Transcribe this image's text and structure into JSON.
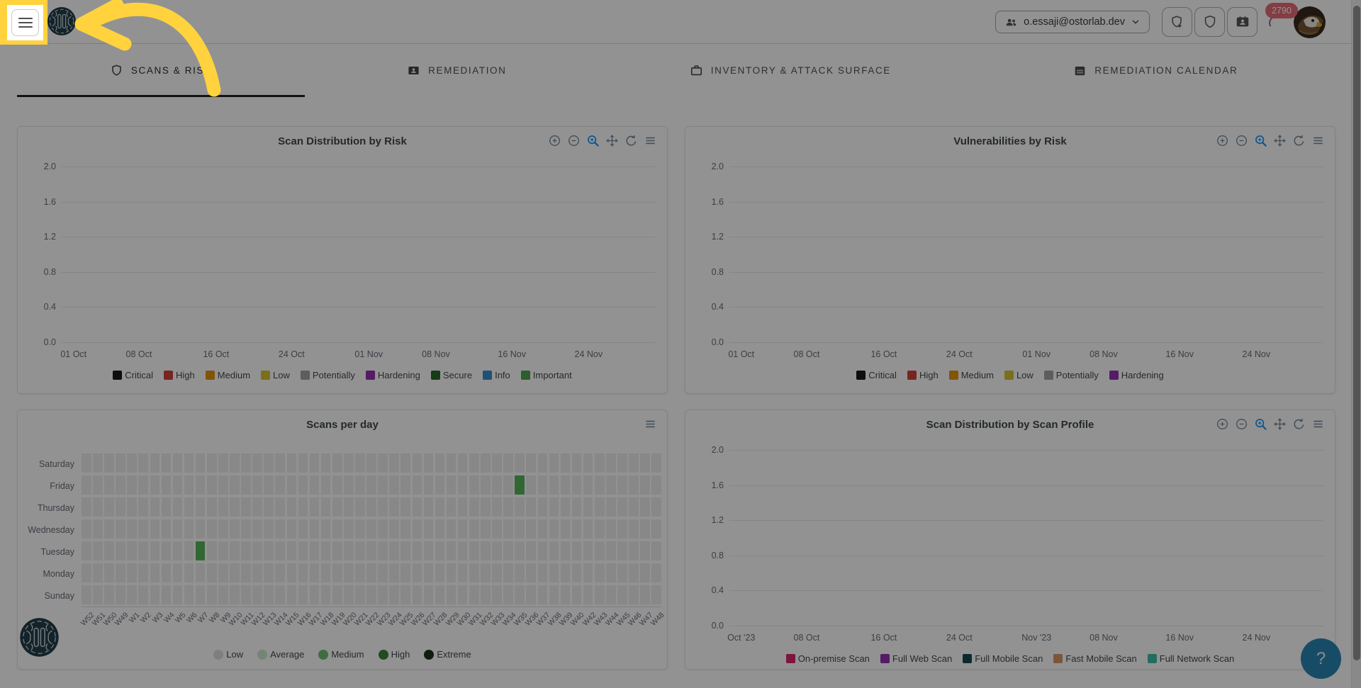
{
  "annotation": {
    "highlight_color": "#FFD23E",
    "target": "menu-button"
  },
  "header": {
    "account": {
      "email": "o.essaji@ostorlab.dev"
    },
    "badge_count": "2790",
    "actions": [
      {
        "name": "new-scan-button",
        "icon": "shield-plus-icon"
      },
      {
        "name": "security-button",
        "icon": "shield-icon"
      },
      {
        "name": "contacts-button",
        "icon": "contact-card-icon"
      },
      {
        "name": "usage-button",
        "icon": "arc-gauge-icon"
      }
    ]
  },
  "tabs": [
    {
      "label": "SCANS & RISK",
      "icon": "shield-icon",
      "active": true
    },
    {
      "label": "REMEDIATION",
      "icon": "contact-card-icon",
      "active": false
    },
    {
      "label": "INVENTORY & ATTACK SURFACE",
      "icon": "briefcase-icon",
      "active": false
    },
    {
      "label": "REMEDIATION CALENDAR",
      "icon": "calendar-icon",
      "active": false
    }
  ],
  "help_fab": {
    "label": "?"
  },
  "chart_data": [
    {
      "type": "line",
      "title": "Scan Distribution by Risk",
      "x_ticks": [
        "01 Oct",
        "08 Oct",
        "16 Oct",
        "24 Oct",
        "01 Nov",
        "08 Nov",
        "16 Nov",
        "24 Nov"
      ],
      "y_ticks": [
        "2.0",
        "1.6",
        "1.2",
        "0.8",
        "0.4",
        "0.0"
      ],
      "ylim": [
        0,
        2
      ],
      "grid": true,
      "legend_position": "bottom",
      "toolbar": [
        "zoom-in",
        "zoom-out",
        "selection-zoom",
        "pan",
        "reset",
        "menu"
      ],
      "active_tool": "selection-zoom",
      "series": [
        {
          "name": "Critical",
          "color": "#0b0b0b",
          "values": []
        },
        {
          "name": "High",
          "color": "#d0342c",
          "values": []
        },
        {
          "name": "Medium",
          "color": "#df8f00",
          "values": []
        },
        {
          "name": "Low",
          "color": "#d2bf23",
          "values": []
        },
        {
          "name": "Potentially",
          "color": "#9e9e9e",
          "values": []
        },
        {
          "name": "Hardening",
          "color": "#8e24aa",
          "values": []
        },
        {
          "name": "Secure",
          "color": "#1b5e20",
          "values": []
        },
        {
          "name": "Info",
          "color": "#2f86c9",
          "values": []
        },
        {
          "name": "Important",
          "color": "#43a047",
          "values": []
        }
      ]
    },
    {
      "type": "line",
      "title": "Vulnerabilities by Risk",
      "x_ticks": [
        "01 Oct",
        "08 Oct",
        "16 Oct",
        "24 Oct",
        "01 Nov",
        "08 Nov",
        "16 Nov",
        "24 Nov"
      ],
      "y_ticks": [
        "2.0",
        "1.6",
        "1.2",
        "0.8",
        "0.4",
        "0.0"
      ],
      "ylim": [
        0,
        2
      ],
      "grid": true,
      "legend_position": "bottom",
      "toolbar": [
        "zoom-in",
        "zoom-out",
        "selection-zoom",
        "pan",
        "reset",
        "menu"
      ],
      "active_tool": "selection-zoom",
      "series": [
        {
          "name": "Critical",
          "color": "#0b0b0b",
          "values": []
        },
        {
          "name": "High",
          "color": "#d0342c",
          "values": []
        },
        {
          "name": "Medium",
          "color": "#df8f00",
          "values": []
        },
        {
          "name": "Low",
          "color": "#d2bf23",
          "values": []
        },
        {
          "name": "Potentially",
          "color": "#9e9e9e",
          "values": []
        },
        {
          "name": "Hardening",
          "color": "#8e24aa",
          "values": []
        }
      ]
    },
    {
      "type": "heatmap",
      "title": "Scans per day",
      "toolbar": [
        "menu"
      ],
      "rows": [
        "Saturday",
        "Friday",
        "Thursday",
        "Wednesday",
        "Tuesday",
        "Monday",
        "Sunday"
      ],
      "columns": [
        "W52",
        "W51",
        "W50",
        "W49",
        "W1",
        "W2",
        "W3",
        "W4",
        "W5",
        "W6",
        "W7",
        "W8",
        "W9",
        "W10",
        "W11",
        "W12",
        "W13",
        "W14",
        "W15",
        "W16",
        "W17",
        "W18",
        "W19",
        "W20",
        "W21",
        "W22",
        "W23",
        "W24",
        "W25",
        "W26",
        "W27",
        "W28",
        "W29",
        "W30",
        "W31",
        "W32",
        "W33",
        "W34",
        "W35",
        "W36",
        "W37",
        "W38",
        "W39",
        "W40",
        "W42",
        "W43",
        "W44",
        "W45",
        "W46",
        "W47",
        "W48"
      ],
      "cells": [
        {
          "row": "Friday",
          "column": "W35",
          "level": "Medium"
        },
        {
          "row": "Tuesday",
          "column": "W7",
          "level": "Medium"
        }
      ],
      "cell_color_default": "#ececec",
      "cell_color_active": "#4caf50",
      "legend": [
        {
          "name": "Low",
          "color": "#dcdcdc"
        },
        {
          "name": "Average",
          "color": "#c8e6c9"
        },
        {
          "name": "Medium",
          "color": "#66bb6a"
        },
        {
          "name": "High",
          "color": "#2e7d32"
        },
        {
          "name": "Extreme",
          "color": "#13240f"
        }
      ]
    },
    {
      "type": "line",
      "title": "Scan Distribution by Scan Profile",
      "x_ticks": [
        "Oct '23",
        "08 Oct",
        "16 Oct",
        "24 Oct",
        "Nov '23",
        "08 Nov",
        "16 Nov",
        "24 Nov"
      ],
      "y_ticks": [
        "2.0",
        "1.6",
        "1.2",
        "0.8",
        "0.4",
        "0.0"
      ],
      "ylim": [
        0,
        2
      ],
      "grid": true,
      "legend_position": "bottom",
      "toolbar": [
        "zoom-in",
        "zoom-out",
        "selection-zoom",
        "pan",
        "reset",
        "menu"
      ],
      "active_tool": "selection-zoom",
      "series": [
        {
          "name": "On-premise Scan",
          "color": "#d81b60",
          "values": []
        },
        {
          "name": "Full Web Scan",
          "color": "#8e24aa",
          "values": []
        },
        {
          "name": "Full Mobile Scan",
          "color": "#0a3e4a",
          "values": []
        },
        {
          "name": "Fast Mobile Scan",
          "color": "#d9915b",
          "values": []
        },
        {
          "name": "Full Network Scan",
          "color": "#35b8a4",
          "values": []
        }
      ]
    }
  ]
}
